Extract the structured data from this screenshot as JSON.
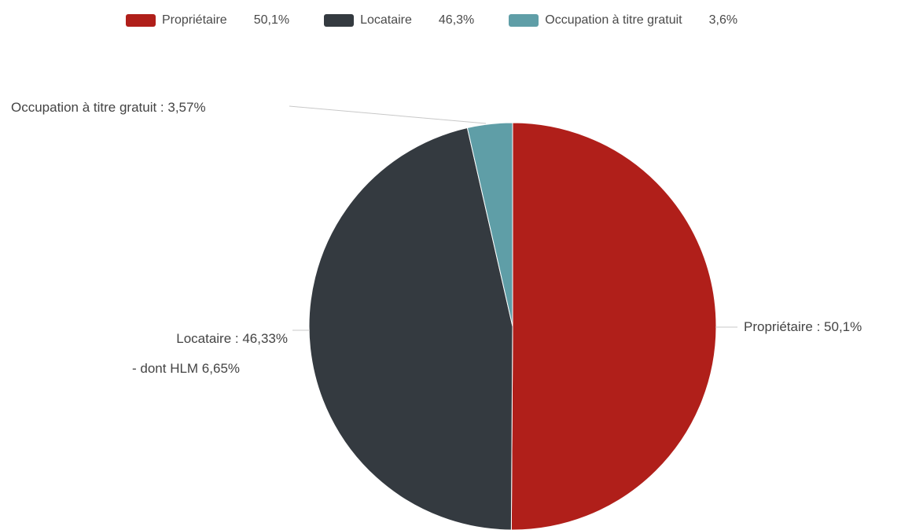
{
  "chart_data": {
    "type": "pie",
    "categories": [
      "Propriétaire",
      "Locataire",
      "Occupation à titre gratuit"
    ],
    "values": [
      50.1,
      46.33,
      3.57
    ],
    "colors": [
      "#b01f1a",
      "#343a40",
      "#5f9ea7"
    ],
    "legend": {
      "position": "top",
      "items": [
        {
          "label": "Propriétaire",
          "value": "50,1%",
          "color": "#b01f1a"
        },
        {
          "label": "Locataire",
          "value": "46,3%",
          "color": "#343a40"
        },
        {
          "label": "Occupation à titre gratuit",
          "value": "3,6%",
          "color": "#5f9ea7"
        }
      ]
    },
    "data_labels": {
      "proprietaire": "Propriétaire : 50,1%",
      "locataire_line1": "Locataire : 46,33%",
      "locataire_line2": "- dont HLM 6,65%",
      "gratuit": "Occupation à titre gratuit : 3,57%"
    }
  }
}
